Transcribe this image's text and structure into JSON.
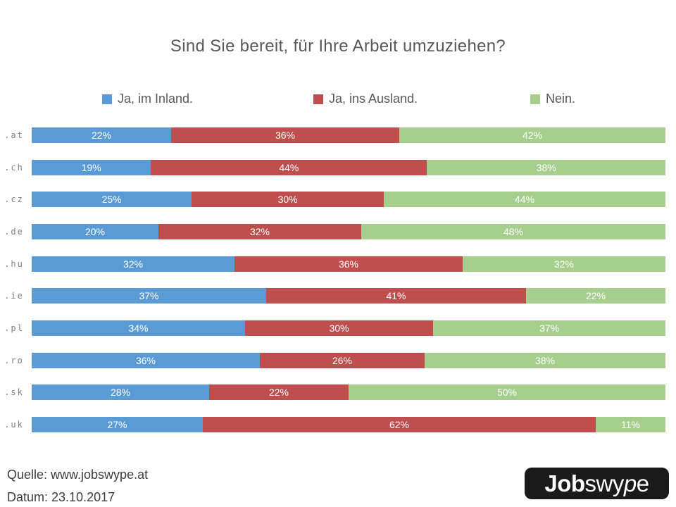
{
  "title": "Sind Sie bereit, für Ihre Arbeit umzuziehen?",
  "chart_data": {
    "type": "bar",
    "orientation": "horizontal",
    "stacked": true,
    "normalized_to_100": true,
    "title": "Sind Sie bereit, für Ihre Arbeit umzuziehen?",
    "legend_position": "top",
    "xlim": [
      0,
      100
    ],
    "grid": false,
    "value_label_format": "{v}%",
    "categories": [
      ".at",
      ".ch",
      ".cz",
      ".de",
      ".hu",
      ".ie",
      ".pl",
      ".ro",
      ".sk",
      ".uk"
    ],
    "series": [
      {
        "name": "Ja, im Inland.",
        "color": "#5B9BD5",
        "values": [
          22,
          19,
          25,
          20,
          32,
          37,
          34,
          36,
          28,
          27
        ]
      },
      {
        "name": "Ja, ins Ausland.",
        "color": "#BF4F4F",
        "values": [
          36,
          44,
          30,
          32,
          36,
          41,
          30,
          26,
          22,
          62
        ]
      },
      {
        "name": "Nein.",
        "color": "#A6CE8C",
        "values": [
          42,
          38,
          44,
          48,
          32,
          22,
          37,
          38,
          50,
          11
        ]
      }
    ]
  },
  "colors": {
    "title_text": "#595959",
    "category_text": "#808080",
    "value_text": "#ffffff",
    "footer_text": "#3d3d3d",
    "logo_background": "#1a1a1a",
    "logo_text": "#ffffff"
  },
  "footer": {
    "source": "Quelle: www.jobswype.at",
    "date": "Datum: 23.10.2017"
  },
  "logo": {
    "part_bold": "Job",
    "part_mid": "swy",
    "part_italic": "p",
    "part_end": "e"
  }
}
